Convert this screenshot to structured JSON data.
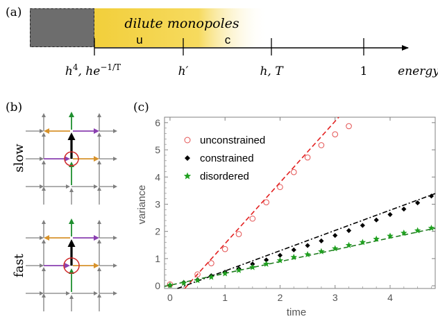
{
  "panel_a": {
    "label": "(a)",
    "band_title": "dilute monopoles",
    "region_u": "u",
    "region_c": "c",
    "ticks": [
      {
        "name": "tick-h4",
        "main": "h",
        "sup": "4",
        "rest": ", he",
        "sup2": "−1/T"
      },
      {
        "name": "tick-hprime",
        "main": "h′"
      },
      {
        "name": "tick-hT",
        "main": "h, T"
      },
      {
        "name": "tick-one",
        "main": "1"
      }
    ],
    "axis_label": "energy",
    "colors": {
      "gray_block": "#6d6d6d",
      "band": "#f2cf3b"
    }
  },
  "panel_b": {
    "label": "(b)",
    "slow_label": "slow",
    "fast_label": "fast",
    "colors": {
      "grid": "#7f7f7f",
      "green": "#1f8f2f",
      "purple": "#8a3fb0",
      "orange": "#d7922b",
      "black": "#000000",
      "ring": "#d02a2a"
    }
  },
  "panel_c": {
    "label": "(c)",
    "chart_data": {
      "type": "scatter",
      "xlabel": "time",
      "ylabel": "variance",
      "xlim": [
        -0.1,
        4.82
      ],
      "ylim": [
        -0.1,
        6.2
      ],
      "xticks": [
        0,
        1,
        2,
        3,
        4
      ],
      "yticks": [
        0,
        1,
        2,
        3,
        4,
        5,
        6
      ],
      "legend_position": "top-left",
      "series": [
        {
          "name": "unconstrained",
          "marker": "open-circle",
          "color": "#e35050",
          "x": [
            0.0,
            0.5,
            0.75,
            1.0,
            1.25,
            1.5,
            1.75,
            2.0,
            2.25,
            2.5,
            2.75,
            3.0,
            3.25
          ],
          "y": [
            0.05,
            0.42,
            0.83,
            1.35,
            1.9,
            2.47,
            3.07,
            3.63,
            4.18,
            4.72,
            5.17,
            5.57,
            5.87
          ],
          "fit": {
            "slope": 2.25,
            "intercept": -0.7,
            "style": "dashed",
            "color": "#e32020"
          }
        },
        {
          "name": "constrained",
          "marker": "diamond",
          "color": "#000000",
          "x": [
            0.0,
            0.25,
            0.5,
            0.75,
            1.0,
            1.25,
            1.5,
            1.75,
            2.0,
            2.25,
            2.5,
            2.75,
            3.0,
            3.25,
            3.5,
            3.75,
            4.0,
            4.25,
            4.5,
            4.75
          ],
          "y": [
            0.02,
            0.12,
            0.22,
            0.37,
            0.5,
            0.63,
            0.8,
            0.95,
            1.12,
            1.32,
            1.48,
            1.65,
            1.85,
            2.03,
            2.22,
            2.42,
            2.62,
            2.82,
            3.05,
            3.3
          ],
          "fit": {
            "slope": 0.745,
            "intercept": -0.2,
            "style": "dash-dot",
            "color": "#000000"
          }
        },
        {
          "name": "disordered",
          "marker": "star",
          "color": "#20a020",
          "x": [
            0.0,
            0.25,
            0.5,
            0.75,
            1.0,
            1.25,
            1.5,
            1.75,
            2.0,
            2.25,
            2.5,
            2.75,
            3.0,
            3.25,
            3.5,
            3.75,
            4.0,
            4.25,
            4.5,
            4.75
          ],
          "y": [
            0.02,
            0.1,
            0.2,
            0.32,
            0.45,
            0.57,
            0.68,
            0.8,
            0.93,
            1.05,
            1.15,
            1.26,
            1.37,
            1.49,
            1.6,
            1.72,
            1.83,
            1.94,
            2.03,
            2.12
          ],
          "fit": {
            "slope": 0.435,
            "intercept": 0.02,
            "style": "dashed",
            "color": "#1d7a1d"
          }
        }
      ]
    }
  }
}
